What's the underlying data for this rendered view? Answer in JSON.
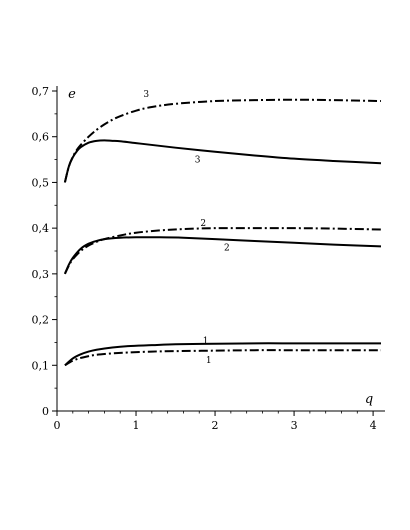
{
  "chart_data": {
    "type": "line",
    "xlabel": "q",
    "ylabel": "e",
    "xlim": [
      0,
      4.1
    ],
    "ylim": [
      0,
      0.7
    ],
    "x_ticks": [
      0,
      1,
      2,
      3,
      4
    ],
    "y_ticks": [
      0,
      0.1,
      0.2,
      0.3,
      0.4,
      0.5,
      0.6,
      0.7
    ],
    "x_tick_labels": [
      "0",
      "1",
      "2",
      "3",
      "4"
    ],
    "y_tick_labels": [
      "0",
      "0,1",
      "0,2",
      "0,3",
      "0,4",
      "0,5",
      "0,6",
      "0,7"
    ],
    "grid": false,
    "series": [
      {
        "label": "1",
        "style": "solid",
        "x": [
          0.1,
          0.2,
          0.3,
          0.4,
          0.5,
          0.7,
          0.9,
          1.2,
          1.5,
          2.0,
          2.5,
          3.0,
          3.5,
          4.1
        ],
        "y": [
          0.1,
          0.115,
          0.124,
          0.13,
          0.134,
          0.139,
          0.142,
          0.144,
          0.146,
          0.147,
          0.148,
          0.148,
          0.148,
          0.148
        ]
      },
      {
        "label": "1",
        "style": "dashdot",
        "x": [
          0.1,
          0.2,
          0.3,
          0.4,
          0.5,
          0.7,
          0.9,
          1.2,
          1.5,
          2.0,
          2.5,
          3.0,
          3.5,
          4.1
        ],
        "y": [
          0.1,
          0.11,
          0.116,
          0.12,
          0.123,
          0.126,
          0.128,
          0.13,
          0.131,
          0.132,
          0.133,
          0.133,
          0.133,
          0.133
        ]
      },
      {
        "label": "2",
        "style": "solid",
        "x": [
          0.1,
          0.15,
          0.2,
          0.3,
          0.4,
          0.5,
          0.6,
          0.8,
          1.0,
          1.3,
          1.6,
          2.0,
          2.5,
          3.0,
          3.5,
          4.1
        ],
        "y": [
          0.3,
          0.32,
          0.335,
          0.355,
          0.366,
          0.372,
          0.376,
          0.379,
          0.38,
          0.38,
          0.379,
          0.376,
          0.372,
          0.368,
          0.364,
          0.36
        ]
      },
      {
        "label": "2",
        "style": "dashdot",
        "x": [
          0.1,
          0.15,
          0.2,
          0.3,
          0.4,
          0.5,
          0.6,
          0.8,
          1.0,
          1.3,
          1.6,
          2.0,
          2.5,
          3.0,
          3.5,
          4.1
        ],
        "y": [
          0.3,
          0.318,
          0.332,
          0.35,
          0.362,
          0.37,
          0.376,
          0.384,
          0.39,
          0.395,
          0.398,
          0.4,
          0.4,
          0.4,
          0.399,
          0.397
        ]
      },
      {
        "label": "3",
        "style": "solid",
        "x": [
          0.1,
          0.15,
          0.2,
          0.25,
          0.3,
          0.4,
          0.5,
          0.6,
          0.7,
          0.8,
          1.0,
          1.2,
          1.5,
          2.0,
          2.5,
          3.0,
          3.5,
          4.1
        ],
        "y": [
          0.5,
          0.535,
          0.555,
          0.568,
          0.577,
          0.587,
          0.591,
          0.592,
          0.591,
          0.59,
          0.586,
          0.582,
          0.576,
          0.567,
          0.559,
          0.552,
          0.547,
          0.542
        ]
      },
      {
        "label": "3",
        "style": "dashdot",
        "x": [
          0.1,
          0.15,
          0.2,
          0.25,
          0.3,
          0.4,
          0.5,
          0.6,
          0.7,
          0.8,
          1.0,
          1.2,
          1.5,
          2.0,
          2.5,
          3.0,
          3.5,
          4.1
        ],
        "y": [
          0.5,
          0.535,
          0.556,
          0.571,
          0.582,
          0.6,
          0.615,
          0.627,
          0.637,
          0.645,
          0.657,
          0.665,
          0.672,
          0.678,
          0.68,
          0.681,
          0.68,
          0.678
        ]
      }
    ],
    "curve_labels": [
      {
        "text": "1",
        "x": 1.88,
        "y": 0.154
      },
      {
        "text": "1",
        "x": 1.92,
        "y": 0.112
      },
      {
        "text": "2",
        "x": 1.85,
        "y": 0.411
      },
      {
        "text": "2",
        "x": 2.15,
        "y": 0.358
      },
      {
        "text": "3",
        "x": 1.13,
        "y": 0.693
      },
      {
        "text": "3",
        "x": 1.78,
        "y": 0.55
      }
    ]
  }
}
